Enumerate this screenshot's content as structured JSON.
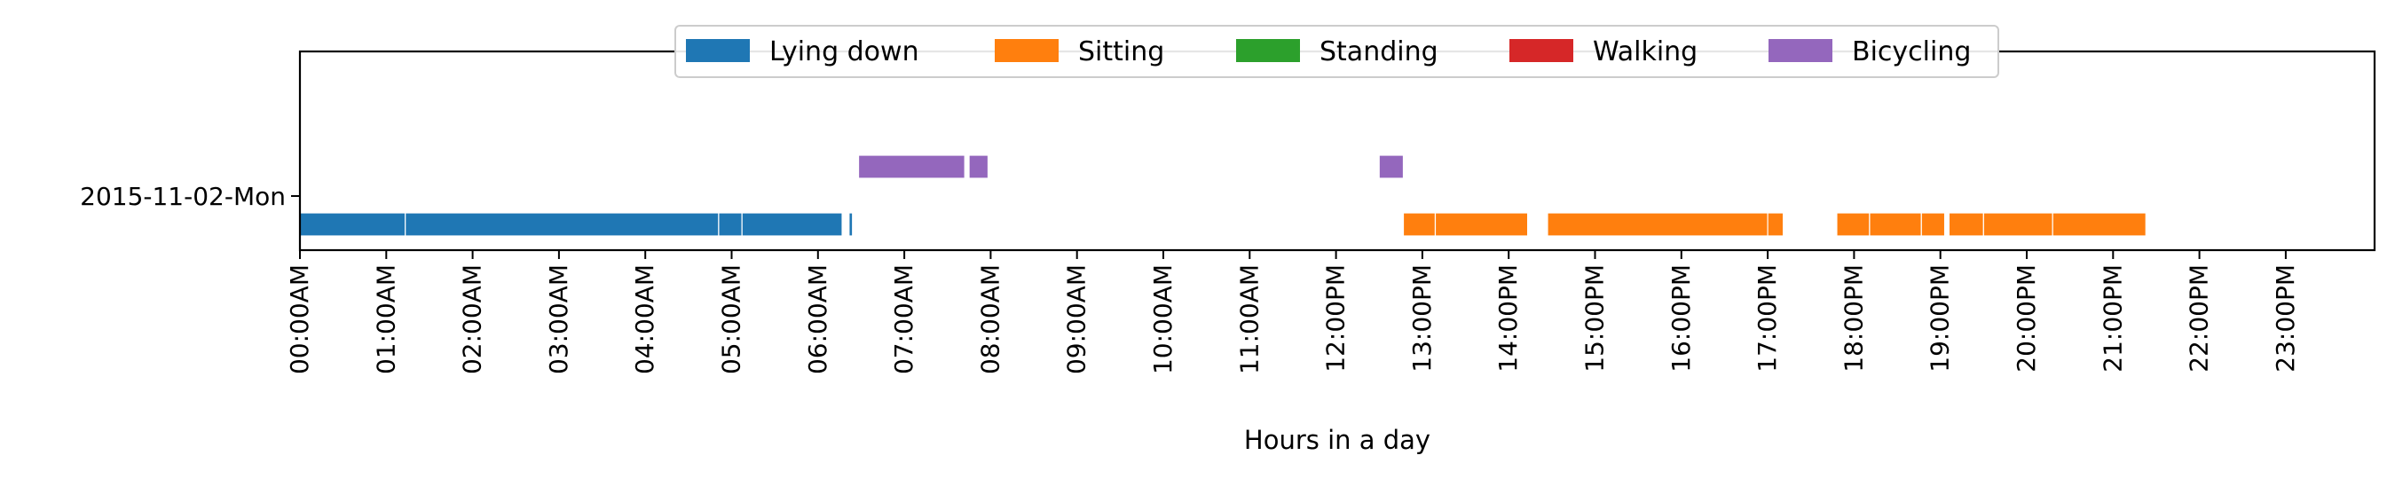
{
  "chart_data": {
    "type": "timeline",
    "xlabel": "Hours in a day",
    "ylabel": "",
    "xlim": [
      0,
      24
    ],
    "x_tick_values": [
      0,
      1,
      2,
      3,
      4,
      5,
      6,
      7,
      8,
      9,
      10,
      11,
      12,
      13,
      14,
      15,
      16,
      17,
      18,
      19,
      20,
      21,
      22,
      23
    ],
    "x_tick_labels": [
      "00:00AM",
      "01:00AM",
      "02:00AM",
      "03:00AM",
      "04:00AM",
      "05:00AM",
      "06:00AM",
      "07:00AM",
      "08:00AM",
      "09:00AM",
      "10:00AM",
      "11:00AM",
      "12:00PM",
      "13:00PM",
      "14:00PM",
      "15:00PM",
      "16:00PM",
      "17:00PM",
      "18:00PM",
      "19:00PM",
      "20:00PM",
      "21:00PM",
      "22:00PM",
      "23:00PM"
    ],
    "y_categories": [
      "2015-11-02-Mon"
    ],
    "legend_position": "top-center",
    "legend": [
      {
        "label": "Lying down",
        "color": "#1f77b4"
      },
      {
        "label": "Sitting",
        "color": "#ff7f0e"
      },
      {
        "label": "Standing",
        "color": "#2ca02c"
      },
      {
        "label": "Walking",
        "color": "#d62728"
      },
      {
        "label": "Bicycling",
        "color": "#9467bd"
      }
    ],
    "series": [
      {
        "name": "Lying down",
        "color": "#1f77b4",
        "lane": 0,
        "segments": [
          [
            0.0,
            1.22
          ],
          [
            1.22,
            4.85
          ],
          [
            4.85,
            5.12
          ],
          [
            5.12,
            6.28
          ],
          [
            6.36,
            6.4
          ]
        ]
      },
      {
        "name": "Sitting",
        "color": "#ff7f0e",
        "lane": 0,
        "segments": [
          [
            12.78,
            13.15
          ],
          [
            13.15,
            14.22
          ],
          [
            14.45,
            17.0
          ],
          [
            17.0,
            17.18
          ],
          [
            17.8,
            18.18
          ],
          [
            18.18,
            18.78
          ],
          [
            18.78,
            19.05
          ],
          [
            19.1,
            19.5
          ],
          [
            19.5,
            20.3
          ],
          [
            20.3,
            21.38
          ]
        ]
      },
      {
        "name": "Standing",
        "color": "#2ca02c",
        "lane": 0,
        "segments": []
      },
      {
        "name": "Walking",
        "color": "#d62728",
        "lane": 0,
        "segments": []
      },
      {
        "name": "Bicycling",
        "color": "#9467bd",
        "lane": 1,
        "segments": [
          [
            6.47,
            7.7
          ],
          [
            7.75,
            7.97
          ],
          [
            12.5,
            12.78
          ]
        ]
      }
    ]
  }
}
